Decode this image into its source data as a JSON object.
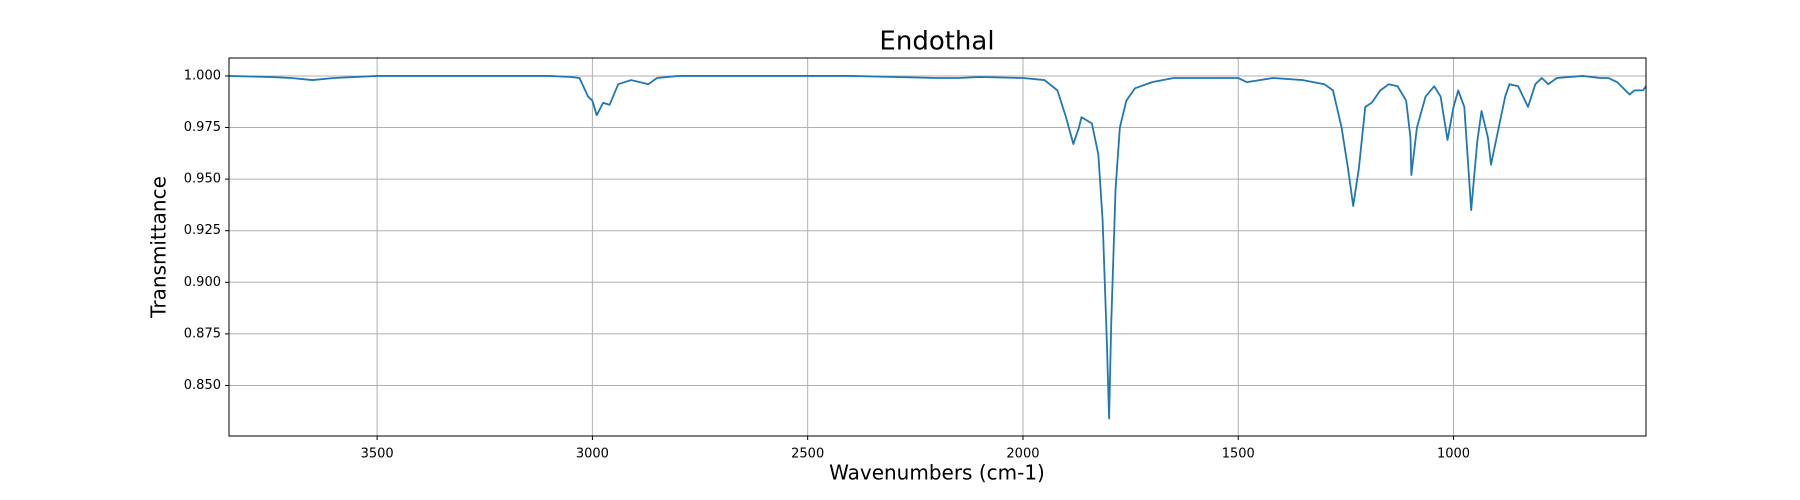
{
  "chart_data": {
    "type": "line",
    "title": "Endothal",
    "xlabel": "Wavenumbers (cm-1)",
    "ylabel": "Transmittance",
    "xlim": [
      3844,
      553
    ],
    "ylim": [
      0.8255,
      1.0087
    ],
    "grid": true,
    "xticks": [
      3500,
      3000,
      2500,
      2000,
      1500,
      1000
    ],
    "yticks": [
      {
        "value": 0.85,
        "label": "0.850"
      },
      {
        "value": 0.875,
        "label": "0.875"
      },
      {
        "value": 0.9,
        "label": "0.900"
      },
      {
        "value": 0.925,
        "label": "0.925"
      },
      {
        "value": 0.95,
        "label": "0.950"
      },
      {
        "value": 0.975,
        "label": "0.975"
      },
      {
        "value": 1.0,
        "label": "1.000"
      }
    ],
    "x": [
      3844,
      3750,
      3700,
      3650,
      3600,
      3500,
      3300,
      3100,
      3050,
      3030,
      3010,
      3000,
      2990,
      2975,
      2960,
      2940,
      2910,
      2890,
      2870,
      2850,
      2800,
      2600,
      2400,
      2300,
      2200,
      2150,
      2100,
      2000,
      1950,
      1920,
      1900,
      1883,
      1870,
      1864,
      1840,
      1825,
      1815,
      1805,
      1800,
      1795,
      1785,
      1775,
      1760,
      1740,
      1700,
      1650,
      1500,
      1480,
      1450,
      1420,
      1350,
      1300,
      1280,
      1260,
      1245,
      1233,
      1220,
      1205,
      1190,
      1170,
      1150,
      1130,
      1110,
      1100,
      1098,
      1085,
      1065,
      1045,
      1030,
      1014,
      1000,
      989,
      975,
      959,
      945,
      935,
      920,
      913,
      900,
      880,
      870,
      850,
      827,
      810,
      795,
      780,
      760,
      700,
      660,
      640,
      620,
      591,
      580,
      560,
      553
    ],
    "series": [
      {
        "name": "Endothal",
        "color": "#1f77b4",
        "values": [
          1.0,
          0.9995,
          0.999,
          0.998,
          0.999,
          1.0,
          1.0,
          1.0,
          0.9995,
          0.999,
          0.99,
          0.988,
          0.981,
          0.987,
          0.986,
          0.996,
          0.998,
          0.997,
          0.996,
          0.999,
          1.0,
          1.0,
          1.0,
          0.9995,
          0.999,
          0.999,
          0.9995,
          0.999,
          0.998,
          0.993,
          0.98,
          0.967,
          0.975,
          0.98,
          0.977,
          0.962,
          0.93,
          0.87,
          0.834,
          0.88,
          0.945,
          0.975,
          0.988,
          0.994,
          0.997,
          0.999,
          0.999,
          0.997,
          0.998,
          0.999,
          0.998,
          0.996,
          0.993,
          0.975,
          0.955,
          0.937,
          0.955,
          0.985,
          0.987,
          0.993,
          0.996,
          0.995,
          0.988,
          0.97,
          0.952,
          0.975,
          0.99,
          0.995,
          0.99,
          0.969,
          0.985,
          0.993,
          0.985,
          0.935,
          0.968,
          0.983,
          0.97,
          0.957,
          0.97,
          0.99,
          0.996,
          0.995,
          0.985,
          0.996,
          0.999,
          0.996,
          0.999,
          1.0,
          0.999,
          0.999,
          0.997,
          0.991,
          0.993,
          0.993,
          0.995
        ]
      }
    ]
  }
}
